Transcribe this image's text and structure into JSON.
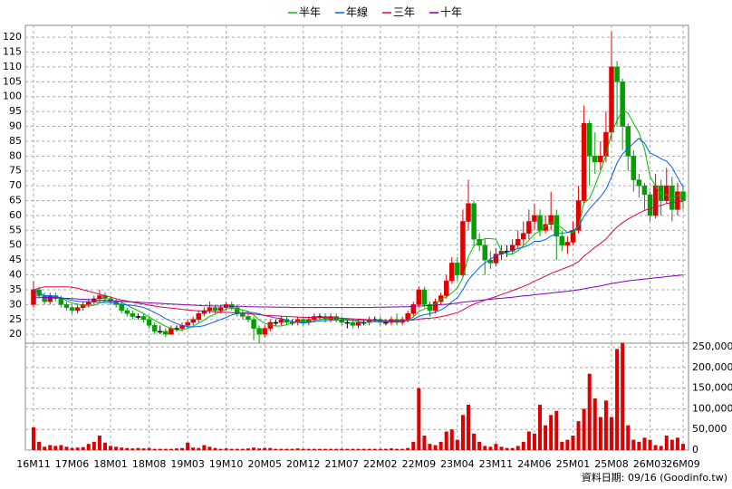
{
  "chart_data": {
    "type": "candlestick",
    "categories": [
      "16M11",
      null,
      null,
      null,
      null,
      null,
      null,
      "17M06",
      null,
      null,
      null,
      null,
      null,
      null,
      "18M01",
      null,
      null,
      null,
      null,
      null,
      null,
      "18M08",
      null,
      null,
      null,
      null,
      null,
      null,
      "19M03",
      null,
      null,
      null,
      null,
      null,
      null,
      "19M10",
      null,
      null,
      null,
      null,
      null,
      null,
      "20M05",
      null,
      null,
      null,
      null,
      null,
      null,
      "20M12",
      null,
      null,
      null,
      null,
      null,
      null,
      "21M07",
      null,
      null,
      null,
      null,
      null,
      null,
      "22M02",
      null,
      null,
      null,
      null,
      null,
      null,
      "22M09",
      null,
      null,
      null,
      null,
      null,
      null,
      "23M04",
      null,
      null,
      null,
      null,
      null,
      null,
      "23M11",
      null,
      null,
      null,
      null,
      null,
      null,
      "24M06",
      null,
      null,
      null,
      null,
      null,
      null,
      "25M01",
      null,
      null,
      null,
      null,
      null,
      null,
      "25M08",
      null,
      null,
      null,
      null,
      null,
      null,
      "26M03",
      null,
      null,
      null,
      null,
      null,
      "26M09"
    ],
    "ohlc": [
      [
        30,
        38,
        29,
        35
      ],
      [
        35,
        36,
        32,
        33
      ],
      [
        33,
        34,
        30,
        31
      ],
      [
        31,
        34,
        30,
        33
      ],
      [
        33,
        34,
        31,
        32
      ],
      [
        32,
        33,
        29,
        30
      ],
      [
        30,
        31,
        28,
        29
      ],
      [
        29,
        30,
        27,
        28
      ],
      [
        28,
        30,
        27,
        29
      ],
      [
        29,
        31,
        28,
        30
      ],
      [
        30,
        32,
        29,
        31
      ],
      [
        31,
        33,
        30,
        32
      ],
      [
        32,
        35,
        31,
        33
      ],
      [
        33,
        34,
        31,
        32
      ],
      [
        32,
        33,
        30,
        31
      ],
      [
        31,
        32,
        29,
        30
      ],
      [
        30,
        31,
        27,
        28
      ],
      [
        28,
        29,
        26,
        27
      ],
      [
        27,
        28,
        25,
        26
      ],
      [
        26,
        27,
        25,
        26
      ],
      [
        26,
        27,
        24,
        25
      ],
      [
        25,
        26,
        22,
        23
      ],
      [
        23,
        24,
        20,
        21
      ],
      [
        21,
        23,
        20,
        21
      ],
      [
        21,
        22,
        19,
        20
      ],
      [
        20,
        23,
        20,
        22
      ],
      [
        22,
        23,
        21,
        22
      ],
      [
        22,
        24,
        21,
        23
      ],
      [
        23,
        25,
        22,
        24
      ],
      [
        24,
        26,
        23,
        25
      ],
      [
        25,
        28,
        24,
        27
      ],
      [
        27,
        29,
        26,
        28
      ],
      [
        28,
        31,
        27,
        29
      ],
      [
        29,
        30,
        27,
        28
      ],
      [
        28,
        30,
        27,
        29
      ],
      [
        29,
        31,
        28,
        30
      ],
      [
        30,
        31,
        28,
        29
      ],
      [
        29,
        30,
        26,
        27
      ],
      [
        27,
        28,
        25,
        26
      ],
      [
        26,
        27,
        24,
        25
      ],
      [
        25,
        26,
        18,
        22
      ],
      [
        22,
        23,
        17,
        20
      ],
      [
        20,
        23,
        19,
        22
      ],
      [
        22,
        25,
        21,
        24
      ],
      [
        24,
        25,
        23,
        24
      ],
      [
        24,
        26,
        23,
        25
      ],
      [
        25,
        26,
        23,
        24
      ],
      [
        24,
        25,
        23,
        24
      ],
      [
        24,
        26,
        23,
        25
      ],
      [
        25,
        26,
        23,
        24
      ],
      [
        24,
        26,
        23,
        25
      ],
      [
        25,
        27,
        24,
        26
      ],
      [
        26,
        27,
        25,
        26
      ],
      [
        26,
        27,
        24,
        25
      ],
      [
        25,
        27,
        24,
        26
      ],
      [
        26,
        27,
        24,
        25
      ],
      [
        25,
        26,
        23,
        24
      ],
      [
        24,
        25,
        22,
        24
      ],
      [
        24,
        25,
        22,
        23
      ],
      [
        23,
        25,
        22,
        24
      ],
      [
        24,
        25,
        23,
        24
      ],
      [
        24,
        26,
        23,
        25
      ],
      [
        25,
        26,
        24,
        25
      ],
      [
        25,
        26,
        23,
        24
      ],
      [
        24,
        25,
        23,
        24
      ],
      [
        24,
        26,
        23,
        25
      ],
      [
        25,
        27,
        23,
        24
      ],
      [
        24,
        26,
        23,
        25
      ],
      [
        25,
        28,
        24,
        27
      ],
      [
        27,
        31,
        26,
        30
      ],
      [
        30,
        36,
        29,
        35
      ],
      [
        35,
        36,
        29,
        30
      ],
      [
        30,
        31,
        26,
        28
      ],
      [
        28,
        32,
        27,
        31
      ],
      [
        31,
        34,
        30,
        33
      ],
      [
        33,
        40,
        32,
        38
      ],
      [
        38,
        46,
        37,
        44
      ],
      [
        44,
        46,
        38,
        40
      ],
      [
        40,
        62,
        39,
        58
      ],
      [
        58,
        72,
        55,
        64
      ],
      [
        64,
        65,
        50,
        52
      ],
      [
        52,
        54,
        48,
        50
      ],
      [
        50,
        52,
        40,
        45
      ],
      [
        45,
        48,
        42,
        44
      ],
      [
        44,
        49,
        43,
        47
      ],
      [
        47,
        50,
        45,
        48
      ],
      [
        48,
        50,
        46,
        48
      ],
      [
        48,
        52,
        47,
        50
      ],
      [
        50,
        55,
        49,
        52
      ],
      [
        52,
        58,
        50,
        54
      ],
      [
        54,
        62,
        52,
        58
      ],
      [
        58,
        64,
        55,
        60
      ],
      [
        60,
        62,
        53,
        55
      ],
      [
        55,
        60,
        54,
        57
      ],
      [
        57,
        68,
        55,
        60
      ],
      [
        60,
        62,
        45,
        53
      ],
      [
        53,
        55,
        48,
        50
      ],
      [
        50,
        53,
        47,
        51
      ],
      [
        51,
        58,
        50,
        55
      ],
      [
        55,
        70,
        54,
        65
      ],
      [
        65,
        97,
        64,
        91
      ],
      [
        91,
        92,
        70,
        80
      ],
      [
        80,
        88,
        74,
        78
      ],
      [
        78,
        85,
        75,
        80
      ],
      [
        80,
        95,
        78,
        88
      ],
      [
        88,
        122,
        85,
        110
      ],
      [
        110,
        112,
        90,
        105
      ],
      [
        105,
        106,
        82,
        90
      ],
      [
        90,
        91,
        75,
        80
      ],
      [
        80,
        82,
        68,
        72
      ],
      [
        72,
        74,
        66,
        70
      ],
      [
        70,
        71,
        62,
        67
      ],
      [
        67,
        68,
        58,
        60
      ],
      [
        60,
        74,
        59,
        70
      ],
      [
        70,
        72,
        60,
        65
      ],
      [
        65,
        76,
        64,
        70
      ],
      [
        70,
        73,
        58,
        62
      ],
      [
        62,
        71,
        60,
        68
      ],
      [
        68,
        70,
        62,
        65
      ]
    ],
    "up_color": "#e00000",
    "down_color": "#00a000",
    "lines": [
      {
        "name": "半年",
        "color": "#00c000",
        "values": [
          35,
          34,
          33,
          33,
          32.8,
          32.3,
          31.3,
          30.5,
          30.2,
          29.7,
          29.5,
          29.8,
          30.5,
          31.2,
          31.3,
          31.3,
          30.8,
          29.8,
          28.8,
          28,
          27,
          25.8,
          24.7,
          23.7,
          22.7,
          22,
          21.5,
          21.5,
          22,
          22.7,
          23.8,
          24.8,
          26,
          26.8,
          27.7,
          28.5,
          28.8,
          28.5,
          28.2,
          27.7,
          26.5,
          24.8,
          23.7,
          23.2,
          22.8,
          22.8,
          23.2,
          23.8,
          24.3,
          24.3,
          24.5,
          24.7,
          25,
          25.2,
          25.3,
          25.5,
          25.3,
          25,
          24.7,
          24.3,
          24,
          24,
          24.2,
          24.3,
          24.3,
          24.5,
          24.5,
          24.5,
          24.8,
          25.8,
          27.7,
          28.5,
          29.2,
          30.3,
          31.8,
          32.5,
          34,
          35.7,
          39,
          46.2,
          49.7,
          51.3,
          52.2,
          52.2,
          52,
          48,
          47,
          47,
          48.2,
          49.8,
          51.7,
          53.7,
          54.8,
          56.3,
          57.8,
          57,
          55.8,
          54.3,
          54.3,
          56.3,
          64.2,
          65.7,
          70,
          75,
          80.3,
          87.8,
          92,
          95.5,
          94.5,
          91,
          87.8,
          82.3,
          73.2,
          69.8,
          67.3,
          67,
          65.7,
          66.8,
          66.7
        ]
      },
      {
        "name": "年線",
        "color": "#0060ff",
        "values": [
          35,
          34,
          33,
          33,
          32.8,
          32.3,
          31.9,
          31.4,
          31.1,
          31,
          30.9,
          30.9,
          30.8,
          30.7,
          30.7,
          30.4,
          30.1,
          29.9,
          29.7,
          29.4,
          29,
          28.3,
          27.3,
          26.4,
          25.3,
          24.4,
          23.6,
          22.9,
          22.6,
          22.5,
          22.6,
          22.9,
          23.6,
          24.3,
          25,
          25.7,
          26.5,
          26.9,
          27.2,
          27.4,
          27.3,
          26.9,
          26.3,
          25.9,
          25.5,
          25.3,
          24.8,
          24.3,
          24,
          23.8,
          24,
          24.3,
          24.5,
          24.6,
          24.7,
          24.8,
          24.8,
          24.8,
          24.7,
          24.7,
          24.7,
          24.7,
          24.6,
          24.5,
          24.3,
          24.3,
          24.3,
          24.4,
          24.6,
          25.1,
          26,
          26.6,
          26.9,
          27.5,
          28.2,
          29.3,
          31,
          32.3,
          35,
          38.3,
          40.4,
          42.5,
          44,
          45.3,
          46.5,
          47,
          47.7,
          48.2,
          48.9,
          49.3,
          50,
          51.3,
          51.3,
          51.9,
          53.1,
          53.8,
          54,
          54.3,
          55,
          56.3,
          59.7,
          62.2,
          64.3,
          66.3,
          68.8,
          73,
          77.7,
          80.7,
          82.5,
          84.3,
          86,
          84.3,
          81,
          80.2,
          79.1,
          78.3,
          76.2,
          72.8,
          69.6
        ]
      },
      {
        "name": "三年",
        "color": "#e00050",
        "values": [
          35,
          35.5,
          36,
          36,
          36,
          36,
          36,
          35.8,
          35.5,
          35,
          34.5,
          34,
          33.5,
          33,
          32.5,
          32,
          31.5,
          31.2,
          30.8,
          30.5,
          30.2,
          29.8,
          29.5,
          29.2,
          29,
          28.8,
          28.6,
          28.4,
          28.2,
          28,
          27.9,
          27.8,
          27.7,
          27.6,
          27.5,
          27.4,
          27.3,
          27.2,
          27.1,
          27,
          26.8,
          26.6,
          26.4,
          26.3,
          26.2,
          26.1,
          26,
          25.9,
          25.8,
          25.7,
          25.7,
          25.7,
          25.7,
          25.6,
          25.6,
          25.5,
          25.4,
          25.3,
          25.2,
          25.1,
          25,
          24.9,
          24.8,
          24.7,
          24.6,
          24.6,
          24.6,
          24.6,
          24.7,
          24.8,
          25.1,
          25.3,
          25.4,
          25.6,
          25.9,
          26.3,
          26.8,
          27.3,
          28.2,
          29.3,
          30.1,
          30.8,
          31.5,
          32.1,
          32.7,
          33.4,
          34,
          34.7,
          35.4,
          36.1,
          36.9,
          37.9,
          38.7,
          39.6,
          40.5,
          41.2,
          41.9,
          42.6,
          43.4,
          44.5,
          46.3,
          47.8,
          49.3,
          50.6,
          52.1,
          54.2,
          56.1,
          57.6,
          58.8,
          59.8,
          60.8,
          61.7,
          62.3,
          62.9,
          63.4,
          64,
          64.3,
          64.6,
          64.8
        ]
      },
      {
        "name": "十年",
        "color": "#8000c0",
        "values": [
          32.5,
          32.5,
          32.4,
          32.4,
          32.3,
          32.2,
          32.1,
          32,
          31.9,
          31.8,
          31.7,
          31.6,
          31.5,
          31.4,
          31.3,
          31.2,
          31.1,
          31,
          30.9,
          30.8,
          30.7,
          30.6,
          30.5,
          30.4,
          30.3,
          30.2,
          30.1,
          30,
          29.9,
          29.8,
          29.7,
          29.6,
          29.6,
          29.5,
          29.5,
          29.5,
          29.4,
          29.4,
          29.4,
          29.3,
          29.3,
          29.2,
          29.2,
          29.2,
          29.1,
          29.1,
          29.1,
          29,
          29,
          29,
          29,
          29,
          29,
          29,
          29,
          29,
          29,
          29,
          29,
          29,
          29,
          29,
          29.1,
          29.1,
          29.1,
          29.2,
          29.2,
          29.3,
          29.3,
          29.4,
          29.5,
          29.6,
          29.7,
          29.8,
          30,
          30.1,
          30.3,
          30.5,
          30.8,
          31,
          31.2,
          31.4,
          31.6,
          31.8,
          32,
          32.1,
          32.3,
          32.5,
          32.7,
          32.9,
          33.1,
          33.3,
          33.5,
          33.7,
          33.9,
          34.1,
          34.3,
          34.5,
          34.7,
          35,
          35.3,
          35.7,
          36,
          36.3,
          36.7,
          37.1,
          37.4,
          37.7,
          38,
          38.2,
          38.4,
          38.6,
          38.8,
          39,
          39.2,
          39.4,
          39.6,
          39.8,
          40
        ]
      }
    ],
    "ylim": [
      17,
      124
    ],
    "yticks": [
      20,
      25,
      30,
      35,
      40,
      45,
      50,
      55,
      60,
      65,
      70,
      75,
      80,
      85,
      90,
      95,
      100,
      105,
      110,
      115,
      120
    ],
    "grid": true,
    "volume": {
      "color": "#dd0000",
      "ylim": [
        0,
        259000
      ],
      "yticks": [
        0,
        {
          "value": 50000,
          "label": "50,000"
        },
        {
          "value": 100000,
          "label": "100,000"
        },
        {
          "value": 150000,
          "label": "150,000"
        },
        {
          "value": 200000,
          "label": "200,000"
        },
        {
          "value": 250000,
          "label": "250,000"
        }
      ],
      "values": [
        55000,
        20000,
        8000,
        12000,
        10000,
        12000,
        8000,
        5000,
        6000,
        7000,
        15000,
        20000,
        35000,
        18000,
        10000,
        8000,
        6000,
        5000,
        4000,
        5000,
        4000,
        5000,
        3000,
        3000,
        3000,
        3000,
        4000,
        5000,
        18000,
        6000,
        5000,
        12000,
        8000,
        5000,
        3000,
        4000,
        3000,
        3000,
        3000,
        4000,
        6000,
        4000,
        5000,
        5000,
        3000,
        3000,
        3000,
        3000,
        4000,
        3000,
        3000,
        3000,
        3000,
        3000,
        3000,
        3000,
        3000,
        3000,
        3000,
        3000,
        3000,
        3000,
        3000,
        3000,
        3000,
        4000,
        3000,
        3000,
        5000,
        20000,
        150000,
        35000,
        15000,
        12000,
        20000,
        45000,
        50000,
        25000,
        85000,
        110000,
        40000,
        20000,
        10000,
        8000,
        15000,
        8000,
        5000,
        5000,
        10000,
        20000,
        45000,
        40000,
        110000,
        60000,
        85000,
        95000,
        20000,
        25000,
        35000,
        70000,
        100000,
        185000,
        125000,
        80000,
        120000,
        80000,
        245000,
        260000,
        60000,
        25000,
        20000,
        30000,
        25000,
        12000,
        10000,
        35000,
        25000,
        30000,
        15000
      ]
    },
    "footer": "資料日期: 09/16 (Goodinfo.tw)"
  }
}
